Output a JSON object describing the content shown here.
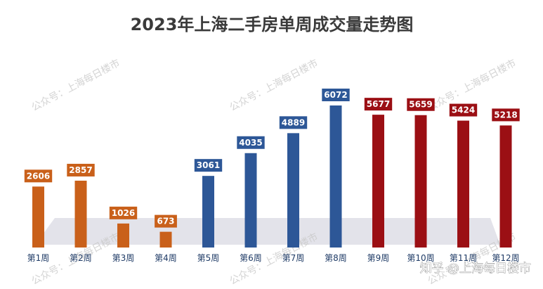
{
  "chart_data": {
    "type": "bar",
    "title": "2023年上海二手房单周成交量走势图",
    "categories": [
      "第1周",
      "第2周",
      "第3周",
      "第4周",
      "第5周",
      "第6周",
      "第7周",
      "第8周",
      "第9周",
      "第10周",
      "第11周",
      "第12周"
    ],
    "values": [
      2606,
      2857,
      1026,
      673,
      3061,
      4035,
      4889,
      6072,
      5677,
      5659,
      5424,
      5218
    ],
    "data_labels": [
      "2606",
      "2857",
      "1026",
      "673",
      "3061",
      "4035",
      "4889",
      "6072",
      "5677",
      "5659",
      "5424",
      "5218"
    ],
    "bar_colors": [
      "#c9601a",
      "#c9601a",
      "#c9601a",
      "#c9601a",
      "#2d5797",
      "#2d5797",
      "#2d5797",
      "#2d5797",
      "#9b0f14",
      "#9b0f14",
      "#9b0f14",
      "#9b0f14"
    ],
    "ylim": [
      0,
      6500
    ],
    "grid": false,
    "legend": "none",
    "xlabel": "",
    "ylabel": ""
  },
  "watermark": "公众号：上海每日楼市",
  "credit": "知乎 @上海每日楼市",
  "colors": {
    "orange": "#c9601a",
    "blue": "#2d5797",
    "red": "#9b0f14",
    "floor": "#e3e3ea",
    "title": "#3a3a3a"
  }
}
